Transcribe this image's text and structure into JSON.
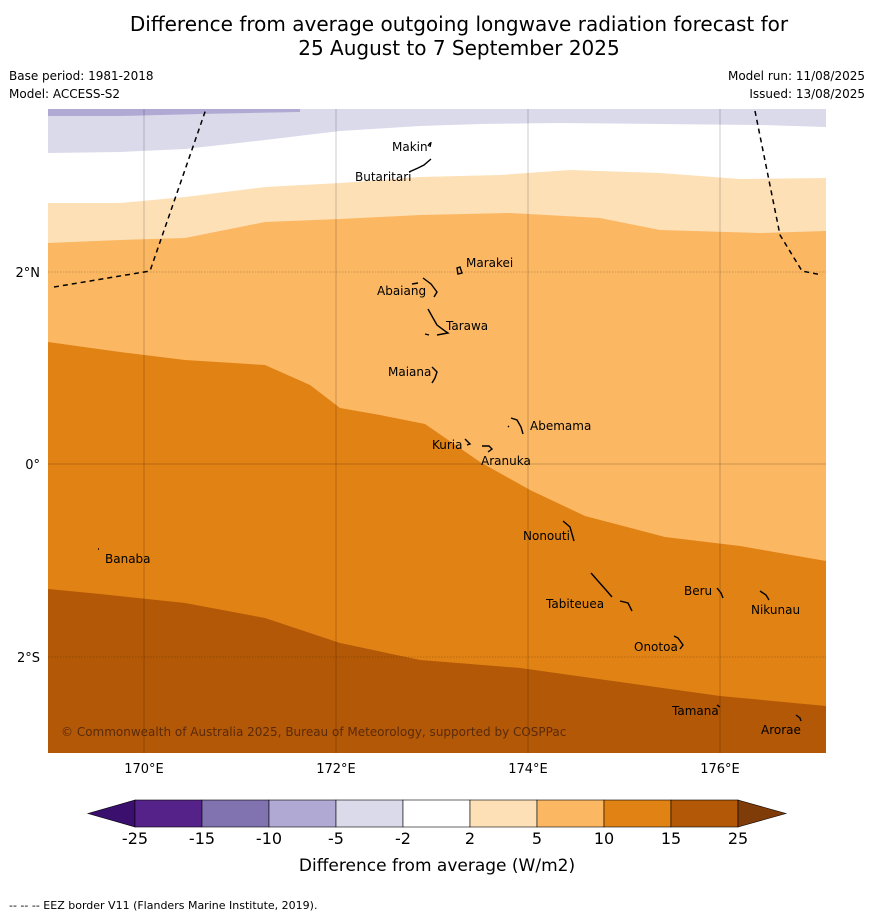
{
  "title_line1": "Difference from average outgoing longwave radiation forecast for",
  "title_line2": "25 August to 7 September 2025",
  "meta": {
    "base_period": "Base period: 1981-2018",
    "model": "Model: ACCESS-S2",
    "model_run": "Model run: 11/08/2025",
    "issued": "Issued: 13/08/2025"
  },
  "map": {
    "lon_labels": [
      "170°E",
      "172°E",
      "174°E",
      "176°E"
    ],
    "lat_labels": [
      "2°N",
      "0°",
      "2°S"
    ],
    "places": [
      "Makin",
      "Butaritari",
      "Marakei",
      "Abaiang",
      "Tarawa",
      "Maiana",
      "Abemama",
      "Kuria",
      "Aranuka",
      "Nonouti",
      "Banaba",
      "Tabiteuea",
      "Beru",
      "Nikunau",
      "Onotoa",
      "Tamana",
      "Arorae"
    ],
    "copyright": "© Commonwealth of Australia 2025, Bureau of Meteorology, supported by COSPPac"
  },
  "colorbar": {
    "ticks": [
      "-25",
      "-15",
      "-10",
      "-5",
      "-2",
      "2",
      "5",
      "10",
      "15",
      "25"
    ],
    "colors": [
      "#3b0f6e",
      "#55228a",
      "#8073b0",
      "#b0a9d3",
      "#dadaeb",
      "#ffffff",
      "#fde0b6",
      "#fbb762",
      "#e08214",
      "#b35806",
      "#7f3b08"
    ],
    "title": "Difference from average (W/m2)"
  },
  "footer": "--  --  -- EEZ border V11 (Flanders Marine Institute, 2019)."
}
